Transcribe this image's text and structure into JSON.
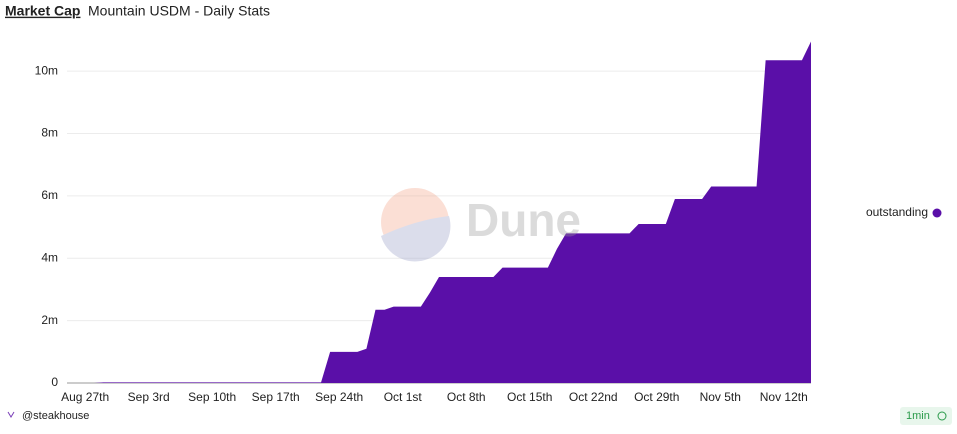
{
  "header": {
    "tab": "Market Cap",
    "title": "Mountain USDM - Daily Stats"
  },
  "watermark": "Dune",
  "footer": {
    "author": "@steakhouse",
    "refresh": "1min"
  },
  "chart_data": {
    "type": "area",
    "categories": [
      null,
      null,
      "Aug 27th",
      null,
      null,
      null,
      null,
      null,
      null,
      "Sep 3rd",
      null,
      null,
      null,
      null,
      null,
      null,
      "Sep 10th",
      null,
      null,
      null,
      null,
      null,
      null,
      "Sep 17th",
      null,
      null,
      null,
      null,
      null,
      null,
      "Sep 24th",
      null,
      null,
      null,
      null,
      null,
      null,
      "Oct 1st",
      null,
      null,
      null,
      null,
      null,
      null,
      "Oct 8th",
      null,
      null,
      null,
      null,
      null,
      null,
      "Oct 15th",
      null,
      null,
      null,
      null,
      null,
      null,
      "Oct 22nd",
      null,
      null,
      null,
      null,
      null,
      null,
      "Oct 29th",
      null,
      null,
      null,
      null,
      null,
      null,
      "Nov 5th",
      null,
      null,
      null,
      null,
      null,
      null,
      "Nov 12th",
      null,
      null,
      null
    ],
    "series": [
      {
        "name": "outstanding",
        "color": "#5a0fa8",
        "values": [
          0,
          0,
          0,
          0,
          0.02,
          0.02,
          0.02,
          0.02,
          0.02,
          0.02,
          0.02,
          0.02,
          0.02,
          0.02,
          0.02,
          0.02,
          0.02,
          0.02,
          0.02,
          0.02,
          0.02,
          0.02,
          0.02,
          0.02,
          0.02,
          0.02,
          0.02,
          0.02,
          0.02,
          1.0,
          1.0,
          1.0,
          1.0,
          1.1,
          2.35,
          2.35,
          2.45,
          2.45,
          2.45,
          2.45,
          2.9,
          3.4,
          3.4,
          3.4,
          3.4,
          3.4,
          3.4,
          3.4,
          3.7,
          3.7,
          3.7,
          3.7,
          3.7,
          3.7,
          4.3,
          4.8,
          4.8,
          4.8,
          4.8,
          4.8,
          4.8,
          4.8,
          4.8,
          5.1,
          5.1,
          5.1,
          5.1,
          5.9,
          5.9,
          5.9,
          5.9,
          6.3,
          6.3,
          6.3,
          6.3,
          6.3,
          6.3,
          10.35,
          10.35,
          10.35,
          10.35,
          10.35,
          10.95
        ]
      }
    ],
    "ylim": [
      0,
      11
    ],
    "yticks": [
      0,
      {
        "value": 2,
        "label": "2m"
      },
      {
        "value": 4,
        "label": "4m"
      },
      {
        "value": 6,
        "label": "6m"
      },
      {
        "value": 8,
        "label": "8m"
      },
      {
        "value": 10,
        "label": "10m"
      }
    ],
    "grid": true,
    "legend": "right"
  }
}
